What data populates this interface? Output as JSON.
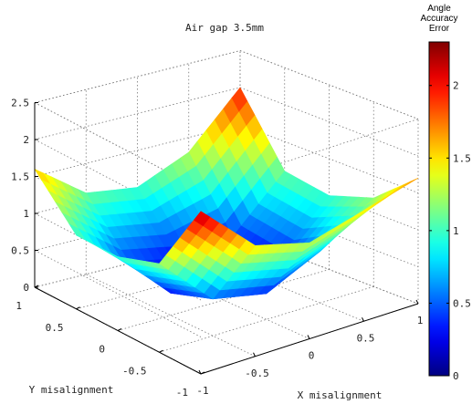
{
  "chart_data": {
    "type": "surface3d",
    "title": "Air gap 3.5mm",
    "xlabel": "X misalignment",
    "ylabel": "Y misalignment",
    "zlabel": "",
    "xlim": [
      -1,
      1
    ],
    "ylim": [
      -1,
      1
    ],
    "zlim": [
      0,
      2.5
    ],
    "x_ticks": [
      "-1",
      "-0.5",
      "0",
      "0.5",
      "1"
    ],
    "y_ticks": [
      "-1",
      "-0.5",
      "0",
      "0.5",
      "1"
    ],
    "z_ticks": [
      "0",
      "0.5",
      "1",
      "1.5",
      "2",
      "2.5"
    ],
    "grid": true,
    "colormap": "jet",
    "colorbar": {
      "title_lines": [
        "Angle",
        "Accuracy",
        "Error"
      ],
      "range": [
        0,
        2.3
      ],
      "ticks": [
        "0",
        "0.5",
        "1",
        "1.5",
        "2"
      ],
      "placement": "right"
    },
    "x": [
      -1,
      -0.5,
      0,
      0.5,
      1
    ],
    "y": [
      -1,
      -0.5,
      0,
      0.5,
      1
    ],
    "z": [
      [
        2.2,
        1.5,
        1.3,
        1.5,
        1.7
      ],
      [
        1.2,
        0.5,
        0.35,
        0.7,
        1.2
      ],
      [
        1.0,
        0.3,
        0.1,
        0.3,
        1.0
      ],
      [
        1.0,
        0.45,
        0.3,
        0.4,
        1.1
      ],
      [
        1.6,
        1.1,
        1.0,
        1.3,
        2.0
      ]
    ]
  }
}
